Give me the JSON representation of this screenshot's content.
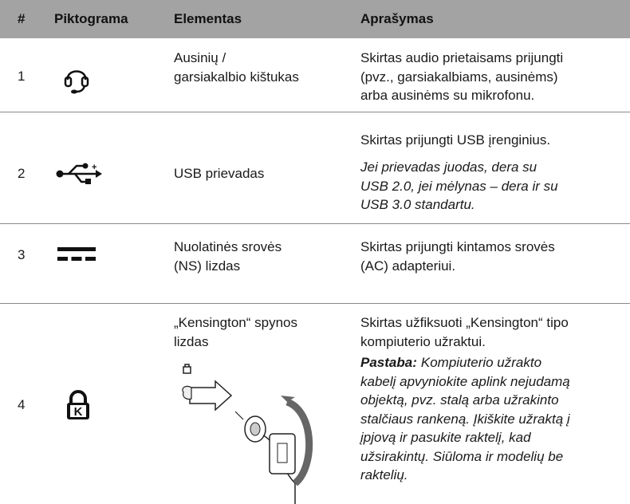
{
  "header": {
    "columns": [
      "#",
      "Piktograma",
      "Elementas",
      "Aprašymas"
    ]
  },
  "rows": [
    {
      "number": "1",
      "element": [
        "Ausinių /",
        "garsiakalbio kištukas"
      ],
      "description": [
        "Skirtas audio prietaisams prijungti",
        "(pvz., garsiakalbiams, ausinėms)",
        "arba ausinėms su mikrofonu."
      ]
    },
    {
      "number": "2",
      "element": [
        "USB prievadas"
      ],
      "description": [
        "Skirtas prijungti USB įrenginius."
      ],
      "note": [
        "Jei prievadas juodas, dera su",
        "USB 2.0, jei mėlynas – dera ir su",
        "USB 3.0 standartu."
      ]
    },
    {
      "number": "3",
      "element": [
        "Nuolatinės srovės",
        "(NS) lizdas"
      ],
      "description": [
        "Skirtas prijungti kintamos srovės",
        "(AC) adapteriui."
      ]
    },
    {
      "number": "4",
      "element": [
        "„Kensington“ spynos",
        "lizdas"
      ],
      "description": [
        "Skirtas užfiksuoti „Kensington“ tipo",
        "kompiuterio užraktui."
      ],
      "note_label": "Pastaba:",
      "note": [
        "Kompiuterio užrakto",
        "kabelį apvyniokite aplink nejudamą",
        "objektą, pvz. stalą arba užrakinto",
        "stalčiaus rankeną. Įkiškite užraktą į",
        "įpjovą ir pasukite raktelį, kad",
        "užsirakintų. Siūloma ir modelių be",
        "raktelių."
      ]
    }
  ]
}
